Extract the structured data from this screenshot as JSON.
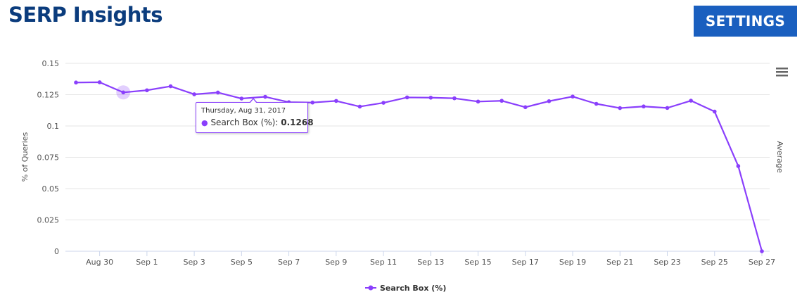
{
  "header": {
    "title": "SERP Insights",
    "settings_label": "SETTINGS"
  },
  "tooltip": {
    "date": "Thursday, Aug 31, 2017",
    "series": "Search Box (%)",
    "separator": ": ",
    "value": "0.1268"
  },
  "chart_data": {
    "type": "line",
    "x": [
      "Aug 29",
      "Aug 30",
      "Aug 31",
      "Sep 1",
      "Sep 2",
      "Sep 3",
      "Sep 4",
      "Sep 5",
      "Sep 6",
      "Sep 7",
      "Sep 8",
      "Sep 9",
      "Sep 10",
      "Sep 11",
      "Sep 12",
      "Sep 13",
      "Sep 14",
      "Sep 15",
      "Sep 16",
      "Sep 17",
      "Sep 18",
      "Sep 19",
      "Sep 20",
      "Sep 21",
      "Sep 22",
      "Sep 23",
      "Sep 24",
      "Sep 25",
      "Sep 26",
      "Sep 27"
    ],
    "x_tick_labels": [
      "Aug 30",
      "Sep 1",
      "Sep 3",
      "Sep 5",
      "Sep 7",
      "Sep 9",
      "Sep 11",
      "Sep 13",
      "Sep 15",
      "Sep 17",
      "Sep 19",
      "Sep 21",
      "Sep 23",
      "Sep 25",
      "Sep 27"
    ],
    "series": [
      {
        "name": "Search Box (%)",
        "color": "#8a3ffc",
        "values": [
          0.1347,
          0.1349,
          0.1268,
          0.1285,
          0.1317,
          0.1253,
          0.1267,
          0.1219,
          0.1233,
          0.119,
          0.1187,
          0.12,
          0.1155,
          0.1185,
          0.1228,
          0.1226,
          0.1221,
          0.1195,
          0.1201,
          0.115,
          0.1198,
          0.1235,
          0.1177,
          0.1143,
          0.1156,
          0.1144,
          0.1202,
          0.1115,
          0.068,
          0.0
        ]
      }
    ],
    "ylabel": "% of Queries",
    "ylabel_right": "Average",
    "ylim": [
      0,
      0.15
    ],
    "y_ticks": [
      "0",
      "0.025",
      "0.05",
      "0.075",
      "0.1",
      "0.125",
      "0.15"
    ],
    "y_tick_values": [
      0,
      0.025,
      0.05,
      0.075,
      0.1,
      0.125,
      0.15
    ],
    "grid": true,
    "legend_position": "bottom-center",
    "highlighted_index": 2,
    "title": ""
  }
}
